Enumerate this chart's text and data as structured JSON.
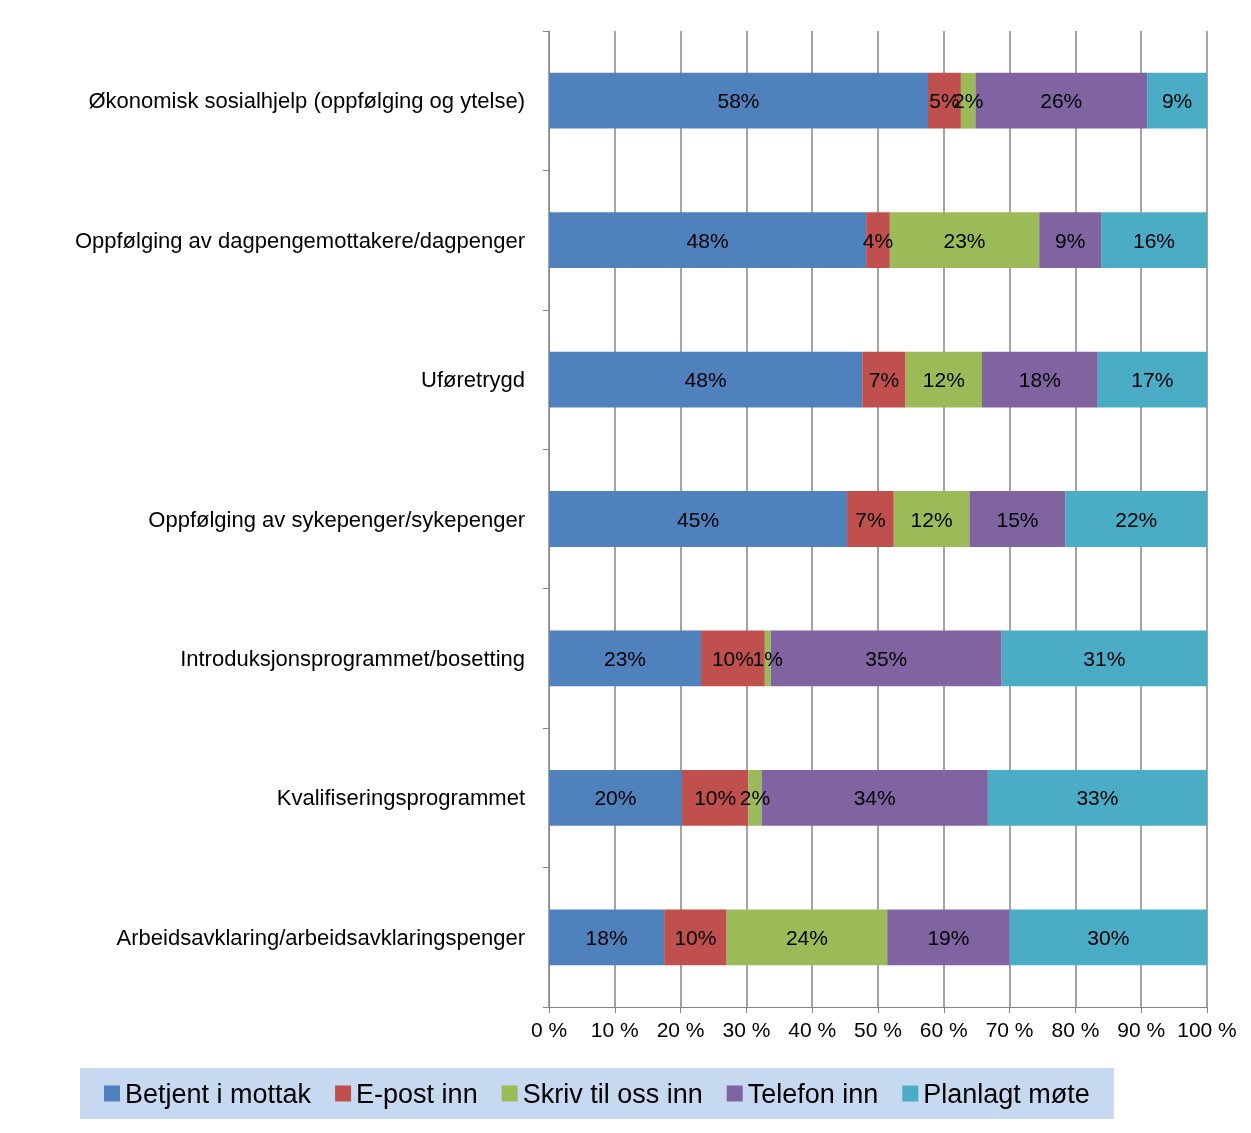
{
  "chart_data": {
    "type": "bar",
    "orientation": "horizontal",
    "stacked": true,
    "categories": [
      "Økonomisk sosialhjelp (oppfølging og ytelse)",
      "Oppfølging av dagpengemottakere/dagpenger",
      "Uføretrygd",
      "Oppfølging av sykepenger/sykepenger",
      "Introduksjonsprogrammet/bosetting",
      "Kvalifiseringsprogrammet",
      "Arbeidsavklaring/arbeidsavklaringspenger"
    ],
    "series": [
      {
        "name": "Betjent i mottak",
        "color": "#4f81bd",
        "values": [
          57.6,
          48.2,
          47.6,
          45.3,
          23.1,
          20.2,
          17.5
        ],
        "value_labels": [
          "58%",
          "48%",
          "48%",
          "45%",
          "23%",
          "20%",
          "18%"
        ]
      },
      {
        "name": "E-post inn",
        "color": "#c0504d",
        "values": [
          5.0,
          3.6,
          6.6,
          7.1,
          9.7,
          10.1,
          9.5
        ],
        "value_labels": [
          "5%",
          "4%",
          "7%",
          "7%",
          "10%",
          "10%",
          "10%"
        ]
      },
      {
        "name": "Skriv til oss inn",
        "color": "#9bbb59",
        "values": [
          2.2,
          22.7,
          11.6,
          11.5,
          0.9,
          2.0,
          24.4
        ],
        "value_labels": [
          "2%",
          "23%",
          "12%",
          "12%",
          "1%",
          "2%",
          "24%"
        ]
      },
      {
        "name": "Telefon inn",
        "color": "#8064a2",
        "values": [
          26.1,
          9.4,
          17.6,
          14.6,
          35.1,
          34.4,
          18.6
        ],
        "value_labels": [
          "26%",
          "9%",
          "18%",
          "15%",
          "35%",
          "34%",
          "19%"
        ]
      },
      {
        "name": "Planlagt møte",
        "color": "#4bacc6",
        "values": [
          9.1,
          16.1,
          16.6,
          21.5,
          31.2,
          33.3,
          30.0
        ],
        "value_labels": [
          "9%",
          "16%",
          "17%",
          "22%",
          "31%",
          "33%",
          "30%"
        ]
      }
    ],
    "xlim": [
      0,
      100
    ],
    "xticks": [
      {
        "value": 0,
        "label": "0 %"
      },
      {
        "value": 10,
        "label": "10 %"
      },
      {
        "value": 20,
        "label": "20 %"
      },
      {
        "value": 30,
        "label": "30 %"
      },
      {
        "value": 40,
        "label": "40 %"
      },
      {
        "value": 50,
        "label": "50 %"
      },
      {
        "value": 60,
        "label": "60 %"
      },
      {
        "value": 70,
        "label": "70 %"
      },
      {
        "value": 80,
        "label": "80 %"
      },
      {
        "value": 90,
        "label": "90 %"
      },
      {
        "value": 100,
        "label": "100 %"
      }
    ],
    "grid": "x",
    "legend": "bottom"
  }
}
